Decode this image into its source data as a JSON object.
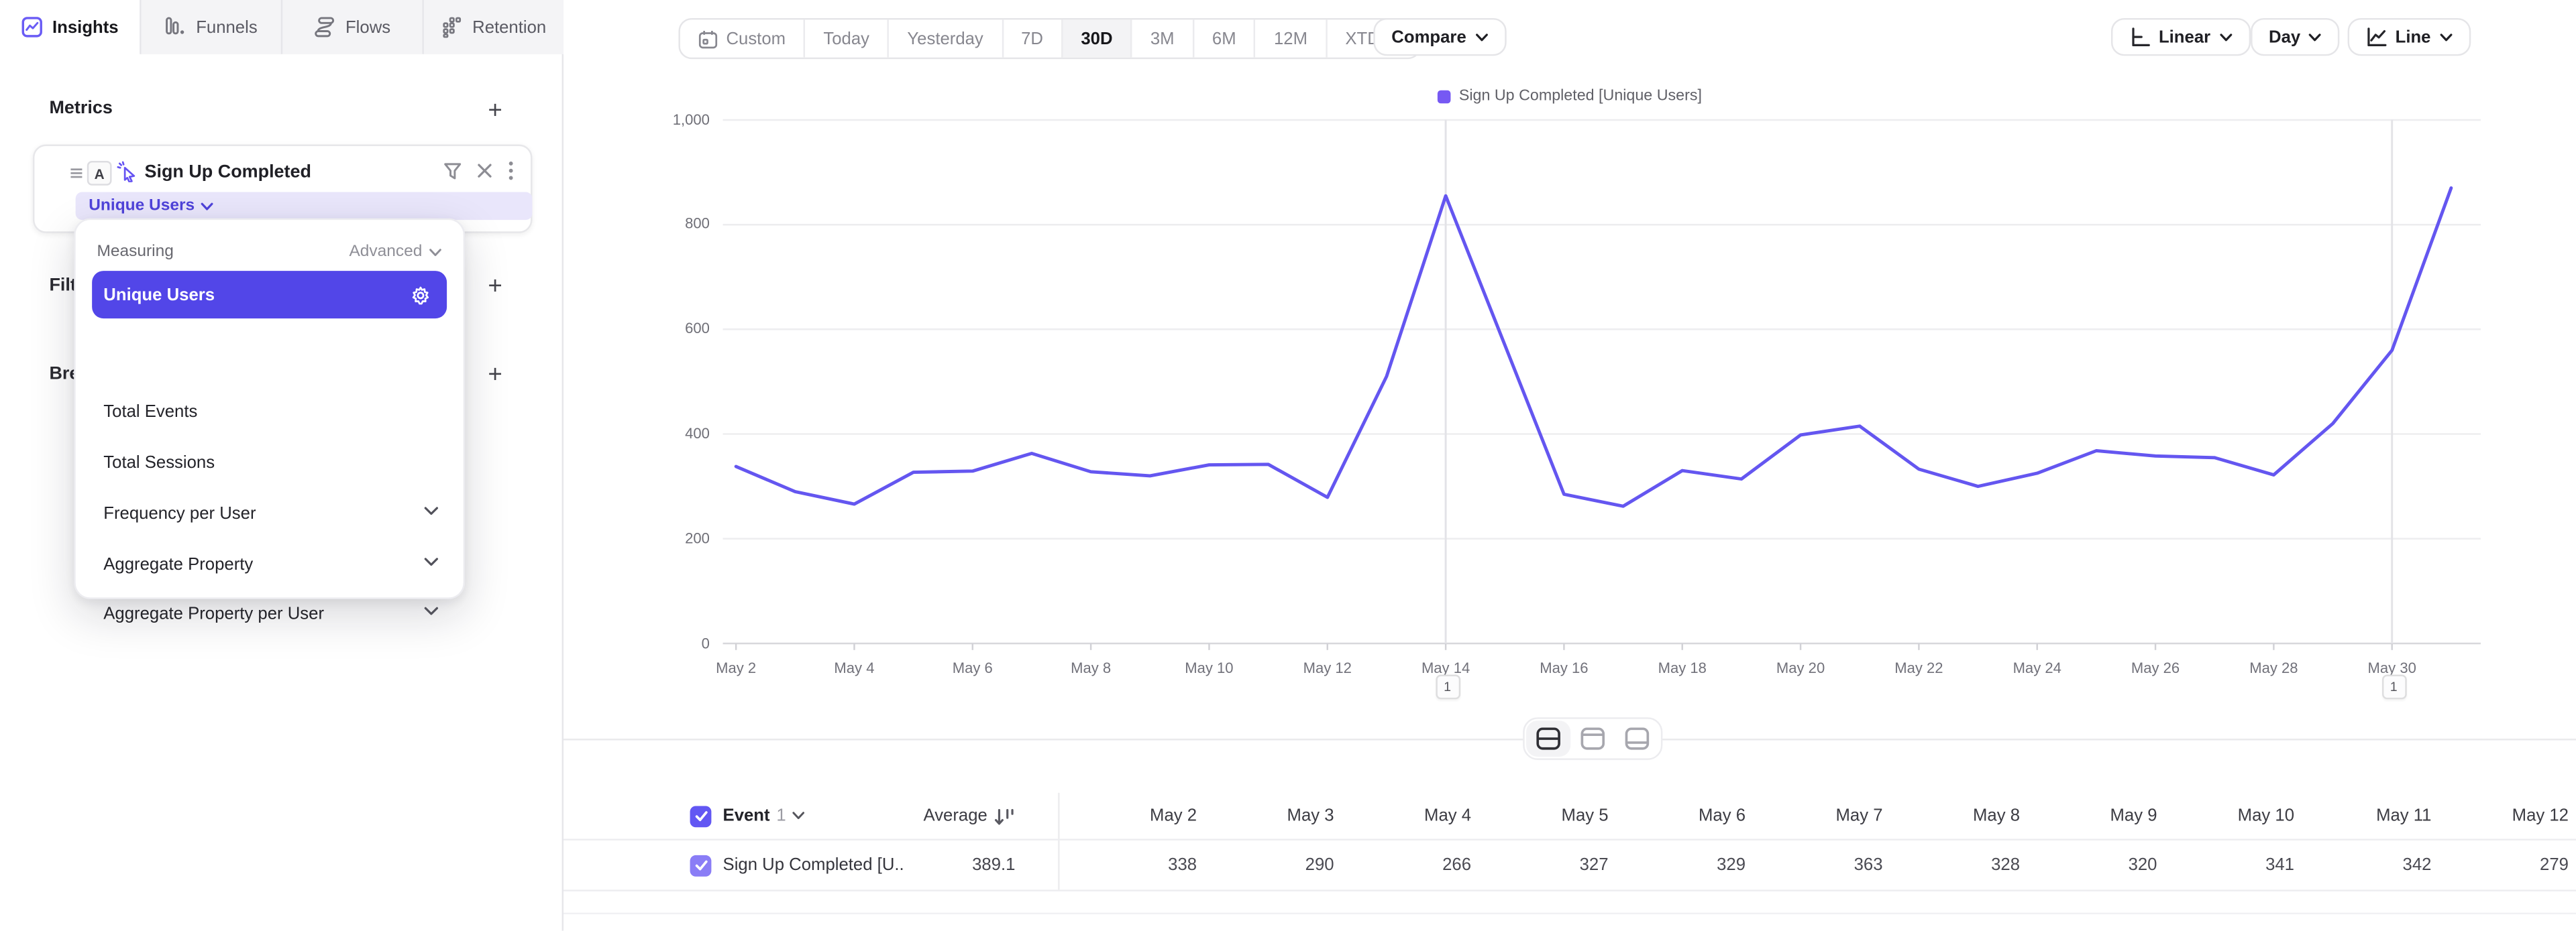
{
  "app": {
    "tabs": [
      {
        "label": "Insights",
        "active": true
      },
      {
        "label": "Funnels",
        "active": false
      },
      {
        "label": "Flows",
        "active": false
      },
      {
        "label": "Retention",
        "active": false
      }
    ]
  },
  "panel": {
    "metrics_title": "Metrics",
    "filters_title": "Filters",
    "breakdowns_title": "Breakdowns",
    "event": {
      "order_letter": "A",
      "name": "Sign Up Completed",
      "measure": "Unique Users"
    }
  },
  "measuring_menu": {
    "label": "Measuring",
    "mode": "Advanced",
    "selected": "Unique Users",
    "items": [
      {
        "label": "Unique Users",
        "selected": true
      },
      {
        "label": "Total Events",
        "selected": false
      },
      {
        "label": "Total Sessions",
        "selected": false
      },
      {
        "label": "Frequency per User",
        "selected": false,
        "expandable": true
      },
      {
        "label": "Aggregate Property",
        "selected": false,
        "expandable": true
      },
      {
        "label": "Aggregate Property per User",
        "selected": false,
        "expandable": true
      }
    ]
  },
  "toolbar": {
    "date_ranges": [
      "Custom",
      "Today",
      "Yesterday",
      "7D",
      "30D",
      "3M",
      "6M",
      "12M",
      "XTD"
    ],
    "active_range": "30D",
    "compare_label": "Compare",
    "scale_label": "Linear",
    "interval_label": "Day",
    "chart_type_label": "Line"
  },
  "chart_data": {
    "type": "line",
    "legend": "Sign Up Completed [Unique Users]",
    "series_name": "Sign Up Completed",
    "measure": "Unique Users",
    "x": [
      "May 2",
      "May 3",
      "May 4",
      "May 5",
      "May 6",
      "May 7",
      "May 8",
      "May 9",
      "May 10",
      "May 11",
      "May 12",
      "May 13",
      "May 14",
      "May 15",
      "May 16",
      "May 17",
      "May 18",
      "May 19",
      "May 20",
      "May 21",
      "May 22",
      "May 23",
      "May 24",
      "May 25",
      "May 26",
      "May 27",
      "May 28",
      "May 29",
      "May 30",
      "May 31"
    ],
    "values": [
      338,
      290,
      266,
      327,
      329,
      363,
      328,
      320,
      341,
      342,
      279,
      510,
      855,
      570,
      285,
      262,
      330,
      314,
      398,
      415,
      333,
      300,
      325,
      368,
      358,
      355,
      322,
      420,
      560,
      870
    ],
    "x_tick_labels": [
      "May 2",
      "May 4",
      "May 6",
      "May 8",
      "May 10",
      "May 12",
      "May 14",
      "May 16",
      "May 18",
      "May 20",
      "May 22",
      "May 24",
      "May 26",
      "May 28",
      "May 30"
    ],
    "y_tick_labels": [
      "0",
      "200",
      "400",
      "600",
      "800",
      "1,000"
    ],
    "ylim": [
      0,
      1000
    ],
    "grid": true,
    "legend_position": "top",
    "line_color": "#6456f0",
    "annotations": [
      {
        "x": "May 14",
        "badge": "1"
      },
      {
        "x": "May 30",
        "badge": "1"
      }
    ]
  },
  "table": {
    "event_label": "Event",
    "event_index": "1",
    "average_label": "Average",
    "row_name": "Sign Up Completed [U...",
    "row_average": "389.1",
    "dates": [
      "May 2",
      "May 3",
      "May 4",
      "May 5",
      "May 6",
      "May 7",
      "May 8",
      "May 9",
      "May 10",
      "May 11",
      "May 12"
    ],
    "values": [
      "338",
      "290",
      "266",
      "327",
      "329",
      "363",
      "328",
      "320",
      "341",
      "342",
      "279"
    ]
  },
  "colors": {
    "accent": "#5246e8",
    "line": "#6456f0",
    "pill_bg": "#e9e6fb",
    "pill_text": "#4f43da",
    "legend_swatch": "#7659f3",
    "grid": "#ededef"
  }
}
